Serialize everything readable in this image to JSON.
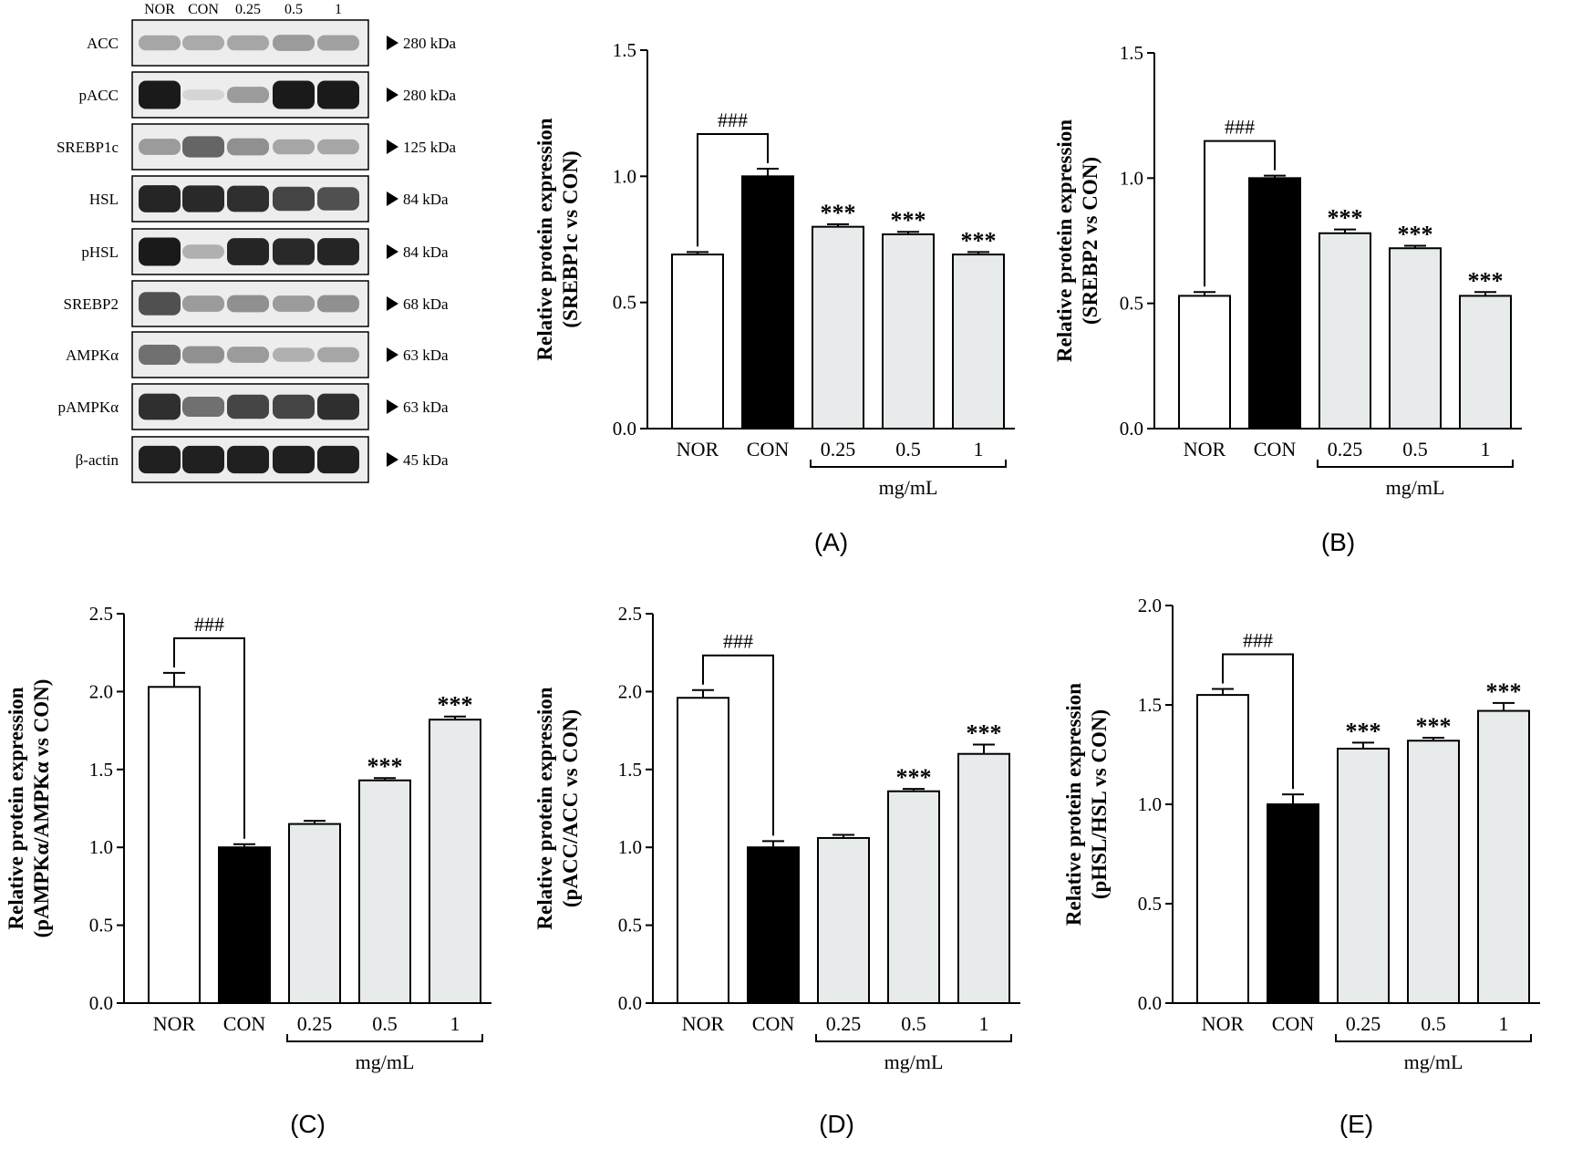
{
  "western_blot": {
    "lane_labels": [
      "NOR",
      "CON",
      "0.25",
      "0.5",
      "1"
    ],
    "rows": [
      {
        "protein": "ACC",
        "size": "280 kDa",
        "intensity": [
          0.3,
          0.28,
          0.3,
          0.35,
          0.32
        ]
      },
      {
        "protein": "pACC",
        "size": "280 kDa",
        "intensity": [
          0.95,
          0.08,
          0.35,
          0.95,
          0.95
        ]
      },
      {
        "protein": "SREBP1c",
        "size": "125 kDa",
        "intensity": [
          0.35,
          0.6,
          0.4,
          0.3,
          0.3
        ]
      },
      {
        "protein": "HSL",
        "size": "84 kDa",
        "intensity": [
          0.9,
          0.88,
          0.85,
          0.75,
          0.7
        ]
      },
      {
        "protein": "pHSL",
        "size": "84 kDa",
        "intensity": [
          0.95,
          0.25,
          0.9,
          0.88,
          0.9
        ]
      },
      {
        "protein": "SREBP2",
        "size": "68 kDa",
        "intensity": [
          0.7,
          0.35,
          0.4,
          0.35,
          0.4
        ]
      },
      {
        "protein": "AMPKα",
        "size": "63 kDa",
        "intensity": [
          0.55,
          0.4,
          0.35,
          0.25,
          0.3
        ]
      },
      {
        "protein": "pAMPKα",
        "size": "63 kDa",
        "intensity": [
          0.85,
          0.55,
          0.75,
          0.75,
          0.85
        ]
      },
      {
        "protein": "β-actin",
        "size": "45 kDa",
        "intensity": [
          0.92,
          0.92,
          0.92,
          0.92,
          0.92
        ]
      }
    ]
  },
  "chart_data": [
    {
      "type": "bar",
      "panel": "(A)",
      "ylabel_lines": [
        "Relative protein expression",
        "(SREBP1c vs CON)"
      ],
      "categories": [
        "NOR",
        "CON",
        "0.25",
        "0.5",
        "1"
      ],
      "values": [
        0.69,
        1.0,
        0.8,
        0.77,
        0.69
      ],
      "errors": [
        0.01,
        0.03,
        0.01,
        0.01,
        0.01
      ],
      "annotations": [
        "",
        "",
        "***",
        "***",
        "***"
      ],
      "comparison_label": "###",
      "group_label": "mg/mL",
      "ylim": [
        0,
        1.5
      ],
      "yticks": [
        "0.0",
        "0.5",
        "1.0",
        "1.5"
      ],
      "bar_colors": [
        "#ffffff",
        "#000000",
        "#e8ebec",
        "#e8ebec",
        "#e8ebec"
      ]
    },
    {
      "type": "bar",
      "panel": "(B)",
      "ylabel_lines": [
        "Relative protein expression",
        "(SREBP2 vs CON)"
      ],
      "categories": [
        "NOR",
        "CON",
        "0.25",
        "0.5",
        "1"
      ],
      "values": [
        0.53,
        1.0,
        0.78,
        0.72,
        0.53
      ],
      "errors": [
        0.015,
        0.01,
        0.015,
        0.01,
        0.015
      ],
      "annotations": [
        "",
        "",
        "***",
        "***",
        "***"
      ],
      "comparison_label": "###",
      "group_label": "mg/mL",
      "ylim": [
        0,
        1.5
      ],
      "yticks": [
        "0.0",
        "0.5",
        "1.0",
        "1.5"
      ],
      "bar_colors": [
        "#ffffff",
        "#000000",
        "#e8ebec",
        "#e8ebec",
        "#e8ebec"
      ]
    },
    {
      "type": "bar",
      "panel": "(C)",
      "ylabel_lines": [
        "Relative protein expression",
        "(pAMPKα/AMPKα vs CON)"
      ],
      "categories": [
        "NOR",
        "CON",
        "0.25",
        "0.5",
        "1"
      ],
      "values": [
        2.03,
        1.0,
        1.15,
        1.43,
        1.82
      ],
      "errors": [
        0.09,
        0.02,
        0.02,
        0.015,
        0.02
      ],
      "annotations": [
        "",
        "",
        "",
        "***",
        "***"
      ],
      "comparison_label": "###",
      "group_label": "mg/mL",
      "ylim": [
        0,
        2.5
      ],
      "yticks": [
        "0.0",
        "0.5",
        "1.0",
        "1.5",
        "2.0",
        "2.5"
      ],
      "bar_colors": [
        "#ffffff",
        "#000000",
        "#e8ebec",
        "#e8ebec",
        "#e8ebec"
      ]
    },
    {
      "type": "bar",
      "panel": "(D)",
      "ylabel_lines": [
        "Relative protein expression",
        "(pACC/ACC vs CON)"
      ],
      "categories": [
        "NOR",
        "CON",
        "0.25",
        "0.5",
        "1"
      ],
      "values": [
        1.96,
        1.0,
        1.06,
        1.36,
        1.6
      ],
      "errors": [
        0.05,
        0.04,
        0.02,
        0.015,
        0.06
      ],
      "annotations": [
        "",
        "",
        "",
        "***",
        "***"
      ],
      "comparison_label": "###",
      "group_label": "mg/mL",
      "ylim": [
        0,
        2.5
      ],
      "yticks": [
        "0.0",
        "0.5",
        "1.0",
        "1.5",
        "2.0",
        "2.5"
      ],
      "bar_colors": [
        "#ffffff",
        "#000000",
        "#e8ebec",
        "#e8ebec",
        "#e8ebec"
      ]
    },
    {
      "type": "bar",
      "panel": "(E)",
      "ylabel_lines": [
        "Relative protein expression",
        "(pHSL/HSL vs CON)"
      ],
      "categories": [
        "NOR",
        "CON",
        "0.25",
        "0.5",
        "1"
      ],
      "values": [
        1.55,
        1.0,
        1.28,
        1.32,
        1.47
      ],
      "errors": [
        0.03,
        0.05,
        0.03,
        0.015,
        0.04
      ],
      "annotations": [
        "",
        "",
        "***",
        "***",
        "***"
      ],
      "comparison_label": "###",
      "group_label": "mg/mL",
      "ylim": [
        0,
        2.0
      ],
      "yticks": [
        "0.0",
        "0.5",
        "1.0",
        "1.5",
        "2.0"
      ],
      "bar_colors": [
        "#ffffff",
        "#000000",
        "#e8ebec",
        "#e8ebec",
        "#e8ebec"
      ]
    }
  ]
}
